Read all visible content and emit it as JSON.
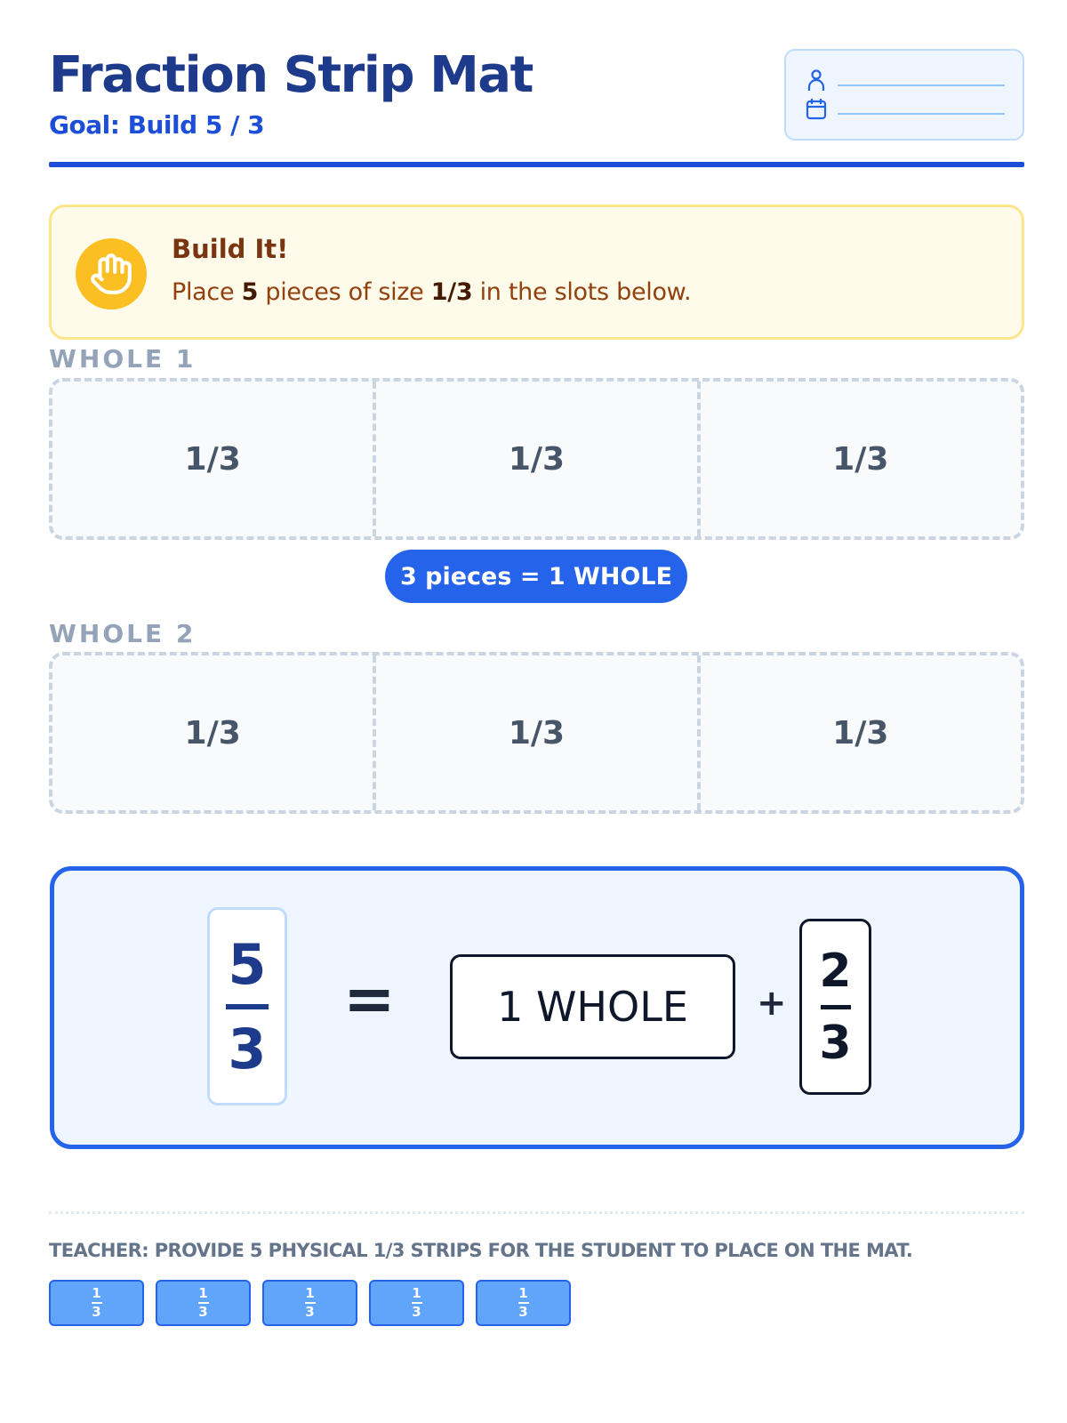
{
  "header": {
    "title": "Fraction Strip Mat",
    "goal": "Goal: Build 5 / 3"
  },
  "name_box": {
    "icons": [
      "user-icon",
      "calendar-icon"
    ]
  },
  "callout": {
    "icon": "hand-icon",
    "title": "Build It!",
    "text_1": "Place ",
    "count": "5",
    "text_2": " pieces of size ",
    "size": "1/3",
    "text_3": " in the slots below."
  },
  "wholes": [
    {
      "label": "WHOLE 1",
      "slots": [
        "1/3",
        "1/3",
        "1/3"
      ]
    },
    {
      "label": "WHOLE 2",
      "slots": [
        "1/3",
        "1/3",
        "1/3"
      ]
    }
  ],
  "badge": "3 pieces = 1 WHOLE",
  "equation": {
    "num": "5",
    "den": "3",
    "equals": "=",
    "whole": "1 WHOLE",
    "plus": "+",
    "rem_num": "2",
    "rem_den": "3"
  },
  "teacher_note": "TEACHER: PROVIDE 5 PHYSICAL 1/3 STRIPS FOR THE STUDENT TO PLACE ON THE MAT.",
  "pieces": [
    {
      "num": "1",
      "den": "3"
    },
    {
      "num": "1",
      "den": "3"
    },
    {
      "num": "1",
      "den": "3"
    },
    {
      "num": "1",
      "den": "3"
    },
    {
      "num": "1",
      "den": "3"
    }
  ],
  "colors": {
    "primary": "#2563eb",
    "title": "#1e3a8a",
    "callout_bg": "#fefbea",
    "callout_icon": "#fbbf24",
    "piece": "#60a5fa"
  }
}
